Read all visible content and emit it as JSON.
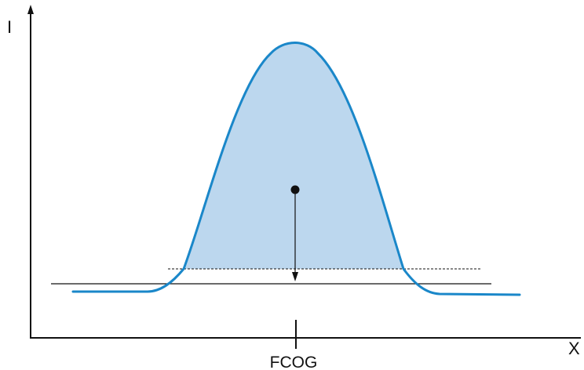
{
  "axes": {
    "y_label": "I",
    "x_label": "X",
    "marker_label": "FCOG"
  },
  "colors": {
    "curve": "#1a87c9",
    "fill": "#bcd7ee",
    "lines": "#111111"
  }
}
